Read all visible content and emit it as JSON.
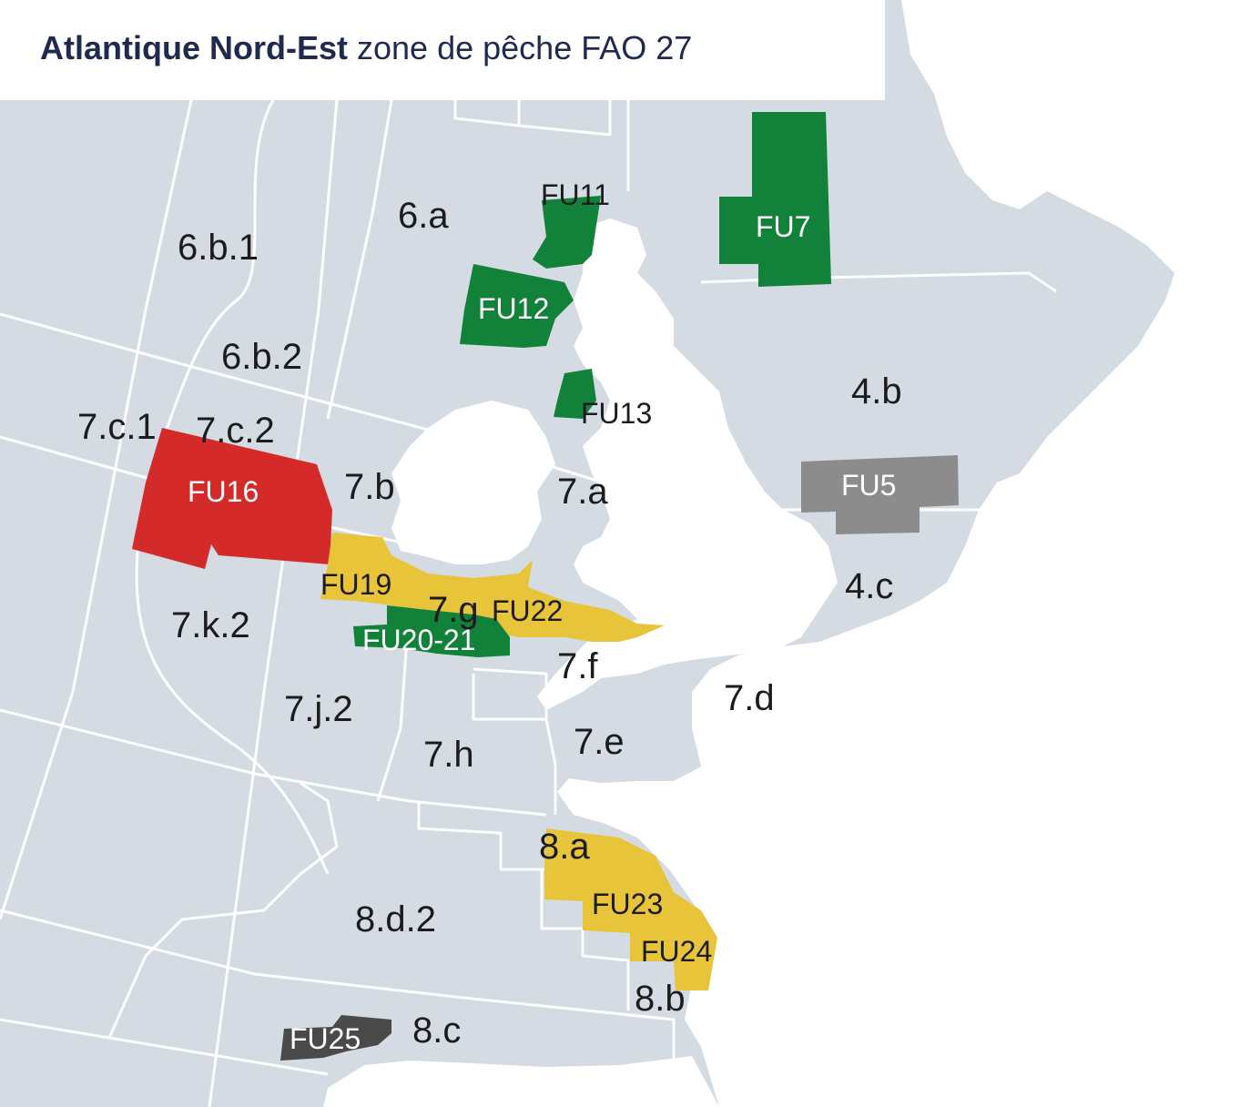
{
  "title": {
    "bold": "Atlantique Nord-Est",
    "rest": "zone de pêche FAO 27"
  },
  "colors": {
    "sea": "#d5dbe2",
    "land": "#ffffff",
    "boundary": "#ffffff",
    "green": "#12823a",
    "yellow": "#e8c43a",
    "red": "#d42a2a",
    "gray": "#8c8c8c",
    "dark": "#4a4a4a"
  },
  "areas": [
    "6.a",
    "6.b.1",
    "6.b.2",
    "7.c.1",
    "7.c.2",
    "7.b",
    "7.a",
    "7.g",
    "7.f",
    "7.k.2",
    "7.j.2",
    "7.h",
    "7.e",
    "7.d",
    "4.b",
    "4.c",
    "8.a",
    "8.b",
    "8.c",
    "8.d.2"
  ],
  "units": [
    {
      "label": "FU11",
      "color": "green"
    },
    {
      "label": "FU7",
      "color": "green"
    },
    {
      "label": "FU12",
      "color": "green"
    },
    {
      "label": "FU13",
      "color": "green"
    },
    {
      "label": "FU5",
      "color": "gray"
    },
    {
      "label": "FU16",
      "color": "red"
    },
    {
      "label": "FU19",
      "color": "yellow"
    },
    {
      "label": "FU22",
      "color": "yellow"
    },
    {
      "label": "FU20-21",
      "color": "green"
    },
    {
      "label": "FU23",
      "color": "yellow"
    },
    {
      "label": "FU24",
      "color": "yellow"
    },
    {
      "label": "FU25",
      "color": "dark"
    }
  ]
}
